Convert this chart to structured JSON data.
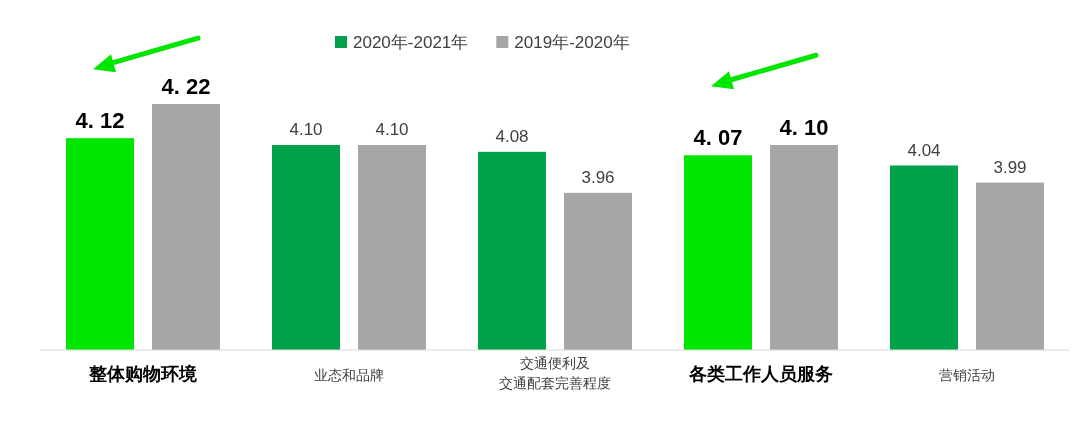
{
  "chart_data": {
    "type": "bar",
    "categories": [
      "整体购物环境",
      "业态和品牌",
      "交通便利及交通配套完善程度",
      "各类工作人员服务",
      "营销活动"
    ],
    "series": [
      {
        "name": "2020年-2021年",
        "color": "#00a14b",
        "colors": [
          "#00e600",
          "#00a14b",
          "#00a14b",
          "#00e600",
          "#00a14b"
        ],
        "values": [
          4.12,
          4.1,
          4.08,
          4.07,
          4.04
        ],
        "value_labels": [
          "4. 12",
          "4.10",
          "4.08",
          "4. 07",
          "4.04"
        ]
      },
      {
        "name": "2019年-2020年",
        "color": "#a6a6a6",
        "colors": [
          "#a6a6a6",
          "#a6a6a6",
          "#a6a6a6",
          "#a6a6a6",
          "#a6a6a6"
        ],
        "values": [
          4.22,
          4.1,
          3.96,
          4.1,
          3.99
        ],
        "value_labels": [
          "4. 22",
          "4.10",
          "3.96",
          "4. 10",
          "3.99"
        ]
      }
    ],
    "ylim": [
      3.5,
      4.22
    ],
    "legend": "top",
    "grid": false
  }
}
